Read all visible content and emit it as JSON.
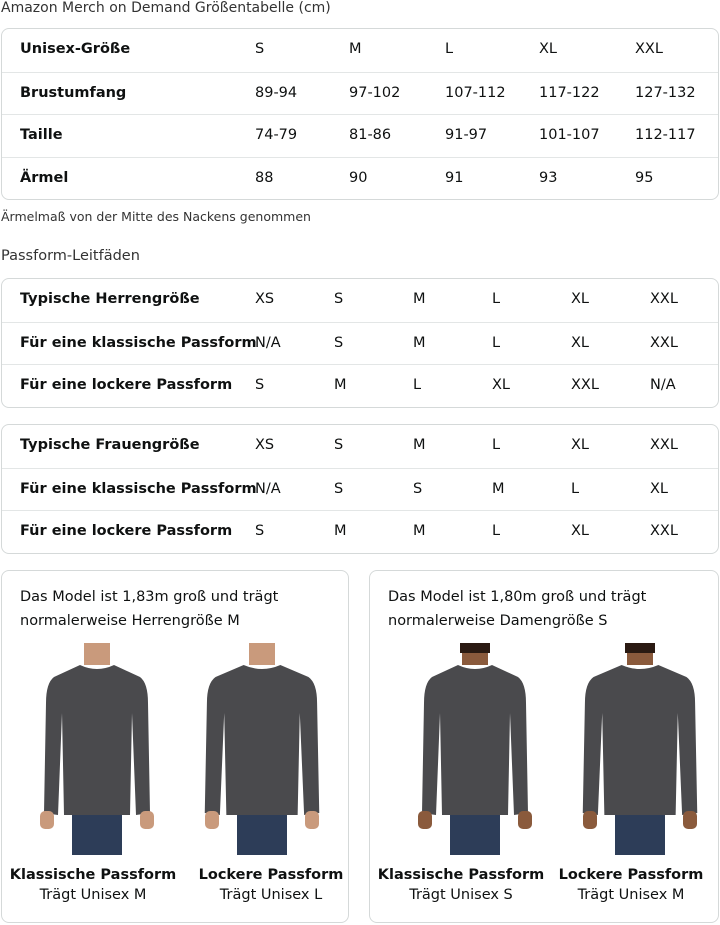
{
  "title": "Amazon Merch on Demand Größentabelle (cm)",
  "size_table": {
    "rows": [
      {
        "label": "Unisex-Größe",
        "values": [
          "S",
          "M",
          "L",
          "XL",
          "XXL"
        ]
      },
      {
        "label": "Brustumfang",
        "values": [
          "89-94",
          "97-102",
          "107-112",
          "117-122",
          "127-132"
        ]
      },
      {
        "label": "Taille",
        "values": [
          "74-79",
          "81-86",
          "91-97",
          "101-107",
          "112-117"
        ]
      },
      {
        "label": "Ärmel",
        "values": [
          "88",
          "90",
          "91",
          "93",
          "95"
        ]
      }
    ]
  },
  "note": "Ärmelmaß von der Mitte des Nackens genommen",
  "subtitle": "Passform-Leitfäden",
  "men_table": {
    "rows": [
      {
        "label": "Typische Herrengröße",
        "values": [
          "XS",
          "S",
          "M",
          "L",
          "XL",
          "XXL"
        ]
      },
      {
        "label": "Für eine klassische Passform",
        "values": [
          "N/A",
          "S",
          "M",
          "L",
          "XL",
          "XXL"
        ]
      },
      {
        "label": "Für eine lockere Passform",
        "values": [
          "S",
          "M",
          "L",
          "XL",
          "XXL",
          "N/A"
        ]
      }
    ]
  },
  "women_table": {
    "rows": [
      {
        "label": "Typische Frauengröße",
        "values": [
          "XS",
          "S",
          "M",
          "L",
          "XL",
          "XXL"
        ]
      },
      {
        "label": "Für eine klassische Passform",
        "values": [
          "N/A",
          "S",
          "S",
          "M",
          "L",
          "XL"
        ]
      },
      {
        "label": "Für eine lockere Passform",
        "values": [
          "S",
          "M",
          "M",
          "L",
          "XL",
          "XXL"
        ]
      }
    ]
  },
  "cards": [
    {
      "desc": "Das Model ist 1,83m groß und trägt normalerweise Herrengröße M",
      "figures": [
        {
          "fit": "Klassische Passform",
          "wears": "Trägt Unisex M"
        },
        {
          "fit": "Lockere Passform",
          "wears": "Trägt Unisex L"
        }
      ]
    },
    {
      "desc": "Das Model ist 1,80m groß und trägt normalerweise Damengröße S",
      "figures": [
        {
          "fit": "Klassische Passform",
          "wears": "Trägt Unisex S"
        },
        {
          "fit": "Lockere Passform",
          "wears": "Trägt Unisex M"
        }
      ]
    }
  ],
  "colors": {
    "shirt": "#4a4a4d",
    "jeans": "#2d3d58",
    "border": "#d5d9d9"
  }
}
